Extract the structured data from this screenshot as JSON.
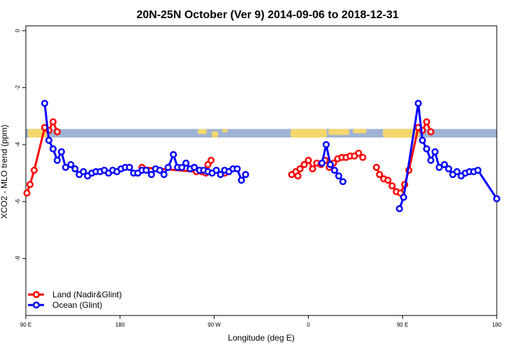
{
  "chart_data": {
    "type": "line",
    "title": "20N-25N October (Ver 9)   2014-09-06 to 2018-12-31",
    "xlabel": "Longitude (deg E)",
    "ylabel": "XCO2 - MLO trend (ppm)",
    "x_ticks": [
      {
        "value": 90,
        "label": "90 E"
      },
      {
        "value": 180,
        "label": "180"
      },
      {
        "value": 270,
        "label": "90 W"
      },
      {
        "value": 360,
        "label": "0"
      },
      {
        "value": 450,
        "label": "90 E"
      },
      {
        "value": 540,
        "label": "180"
      }
    ],
    "y_ticks": [
      {
        "value": 0,
        "label": "0"
      },
      {
        "value": -2,
        "label": "-2"
      },
      {
        "value": -4,
        "label": "-4"
      },
      {
        "value": -6,
        "label": "-6"
      },
      {
        "value": -8,
        "label": "-8"
      }
    ],
    "xlim": [
      90,
      540
    ],
    "ylim": [
      -10,
      0
    ],
    "grid": false,
    "legend_position": "bottom-left",
    "map_strip": {
      "ymin": -3.75,
      "ymax": -3.45,
      "ocean_color": "#9fb4d4",
      "land_color": "#f5d76e"
    },
    "series": [
      {
        "name": "Land (Nadir&Glint)",
        "color": "#ff0000",
        "segments": [
          [
            [
              91,
              -5.7
            ],
            [
              94,
              -5.4
            ],
            [
              98,
              -4.9
            ],
            [
              108,
              -3.4
            ],
            [
              112,
              -3.5
            ],
            [
              116,
              -3.2
            ],
            [
              120,
              -3.55
            ]
          ],
          [
            [
              201,
              -4.8
            ],
            [
              253,
              -4.95
            ],
            [
              258,
              -4.95
            ],
            [
              262,
              -5.0
            ],
            [
              264,
              -4.7
            ],
            [
              267,
              -4.55
            ]
          ],
          [
            [
              280,
              -5.0
            ],
            [
              284,
              -4.95
            ]
          ],
          [
            [
              344,
              -5.05
            ],
            [
              348,
              -4.95
            ],
            [
              350,
              -5.1
            ],
            [
              352,
              -4.85
            ],
            [
              356,
              -4.7
            ],
            [
              360,
              -4.55
            ],
            [
              364,
              -4.85
            ],
            [
              368,
              -4.65
            ],
            [
              372,
              -4.7
            ],
            [
              376,
              -4.55
            ],
            [
              380,
              -4.8
            ],
            [
              384,
              -4.65
            ],
            [
              388,
              -4.5
            ],
            [
              392,
              -4.45
            ],
            [
              396,
              -4.45
            ],
            [
              400,
              -4.4
            ],
            [
              404,
              -4.4
            ],
            [
              408,
              -4.3
            ],
            [
              412,
              -4.45
            ]
          ],
          [
            [
              425,
              -4.8
            ],
            [
              428,
              -5.05
            ],
            [
              432,
              -5.2
            ],
            [
              436,
              -5.25
            ],
            [
              440,
              -5.45
            ],
            [
              444,
              -5.65
            ],
            [
              448,
              -5.7
            ],
            [
              452,
              -5.4
            ],
            [
              456,
              -4.9
            ],
            [
              465,
              -3.4
            ],
            [
              469,
              -3.5
            ],
            [
              473,
              -3.2
            ],
            [
              477,
              -3.55
            ]
          ]
        ]
      },
      {
        "name": "Ocean (Glint)",
        "color": "#0000ff",
        "segments": [
          [
            [
              108,
              -2.55
            ],
            [
              112,
              -3.85
            ],
            [
              116,
              -4.15
            ],
            [
              120,
              -4.55
            ],
            [
              124,
              -4.25
            ],
            [
              128,
              -4.8
            ],
            [
              133,
              -4.7
            ],
            [
              137,
              -4.85
            ],
            [
              141,
              -5.05
            ],
            [
              145,
              -4.95
            ],
            [
              149,
              -5.1
            ],
            [
              153,
              -5.0
            ],
            [
              157,
              -4.95
            ],
            [
              161,
              -4.95
            ],
            [
              165,
              -4.9
            ],
            [
              169,
              -5.0
            ],
            [
              173,
              -4.9
            ],
            [
              177,
              -4.95
            ],
            [
              181,
              -4.85
            ],
            [
              185,
              -4.8
            ],
            [
              189,
              -4.8
            ],
            [
              193,
              -5.0
            ],
            [
              197,
              -5.0
            ],
            [
              201,
              -4.9
            ],
            [
              205,
              -4.9
            ],
            [
              210,
              -5.05
            ],
            [
              214,
              -4.85
            ],
            [
              218,
              -4.9
            ],
            [
              222,
              -5.05
            ],
            [
              226,
              -4.8
            ],
            [
              231,
              -4.35
            ],
            [
              235,
              -4.8
            ],
            [
              239,
              -4.8
            ],
            [
              243,
              -4.65
            ],
            [
              247,
              -4.85
            ],
            [
              251,
              -4.8
            ],
            [
              256,
              -4.9
            ],
            [
              260,
              -4.9
            ],
            [
              264,
              -4.95
            ],
            [
              268,
              -5.0
            ],
            [
              272,
              -4.9
            ],
            [
              276,
              -5.05
            ],
            [
              280,
              -4.9
            ],
            [
              284,
              -4.95
            ],
            [
              288,
              -4.85
            ],
            [
              292,
              -4.85
            ],
            [
              296,
              -5.25
            ],
            [
              300,
              -5.05
            ]
          ],
          [
            [
              373,
              -4.65
            ],
            [
              377,
              -4.0
            ],
            [
              381,
              -4.7
            ],
            [
              385,
              -4.9
            ],
            [
              389,
              -5.1
            ],
            [
              393,
              -5.3
            ]
          ],
          [
            [
              447,
              -6.25
            ],
            [
              451,
              -5.85
            ],
            [
              465,
              -2.55
            ],
            [
              469,
              -3.85
            ],
            [
              473,
              -4.15
            ],
            [
              477,
              -4.55
            ],
            [
              481,
              -4.25
            ],
            [
              485,
              -4.8
            ],
            [
              490,
              -4.7
            ],
            [
              494,
              -4.85
            ],
            [
              498,
              -5.05
            ],
            [
              502,
              -4.95
            ],
            [
              506,
              -5.1
            ],
            [
              510,
              -5.0
            ],
            [
              514,
              -4.95
            ],
            [
              518,
              -4.95
            ],
            [
              522,
              -4.9
            ],
            [
              540,
              -5.9
            ]
          ]
        ]
      }
    ]
  }
}
